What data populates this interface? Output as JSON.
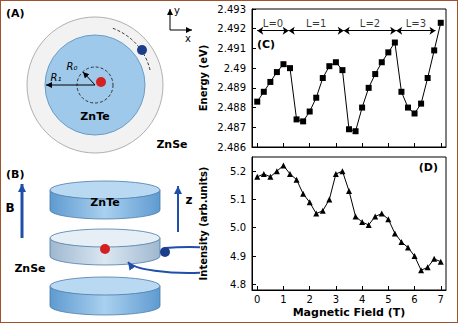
{
  "panels": {
    "a": {
      "panel_label": "(A)",
      "inner_material": "ZnTe",
      "outer_material": "ZnSe",
      "inner_radius_label": "R₀",
      "outer_radius_label": "R₁",
      "axis_x": "x",
      "axis_y": "y"
    },
    "b": {
      "panel_label": "(B)",
      "field_label": "B",
      "axis_label": "z",
      "top_material": "ZnTe",
      "barrier_material": "ZnSe"
    }
  },
  "chart_data": [
    {
      "type": "line",
      "panel_label": "(C)",
      "marker": "square",
      "color": "#000000",
      "grid": false,
      "tick_labels": "y",
      "ylabel": "Energy (eV)",
      "x": [
        0,
        0.25,
        0.5,
        0.75,
        1.0,
        1.25,
        1.5,
        1.75,
        2.0,
        2.25,
        2.5,
        2.75,
        3.0,
        3.25,
        3.5,
        3.75,
        4.0,
        4.25,
        4.5,
        4.75,
        5.0,
        5.25,
        5.5,
        5.75,
        6.0,
        6.25,
        6.5,
        6.75,
        7.0
      ],
      "values": [
        2.4883,
        2.4888,
        2.4893,
        2.4898,
        2.4902,
        2.49,
        2.4874,
        2.4873,
        2.4878,
        2.4885,
        2.4895,
        2.4901,
        2.4903,
        2.4899,
        2.4869,
        2.4868,
        2.488,
        2.489,
        2.4897,
        2.4903,
        2.4908,
        2.4913,
        2.4888,
        2.488,
        2.4877,
        2.4882,
        2.4895,
        2.4909,
        2.4923
      ],
      "xlim": [
        -0.2,
        7.2
      ],
      "xticks": [
        0,
        1,
        2,
        3,
        4,
        5,
        6,
        7
      ],
      "ylim": [
        2.486,
        2.493
      ],
      "yticks": [
        2.486,
        2.487,
        2.488,
        2.489,
        2.49,
        2.491,
        2.492,
        2.493
      ],
      "annotations": [
        {
          "text": "L=0",
          "x": [
            0,
            1.2
          ],
          "y": 2.4919
        },
        {
          "text": "L=1",
          "x": [
            1.2,
            3.3
          ],
          "y": 2.4919
        },
        {
          "text": "L=2",
          "x": [
            3.3,
            5.3
          ],
          "y": 2.4919
        },
        {
          "text": "L=3",
          "x": [
            5.3,
            6.8
          ],
          "y": 2.4919
        }
      ]
    },
    {
      "type": "line",
      "panel_label": "(D)",
      "marker": "triangle",
      "color": "#000000",
      "grid": false,
      "xlabel": "Magnetic Field (T)",
      "ylabel": "Intensity (arb.units)",
      "x": [
        0,
        0.25,
        0.5,
        0.75,
        1.0,
        1.25,
        1.5,
        1.75,
        2.0,
        2.25,
        2.5,
        2.75,
        3.0,
        3.25,
        3.5,
        3.75,
        4.0,
        4.25,
        4.5,
        4.75,
        5.0,
        5.25,
        5.5,
        5.75,
        6.0,
        6.25,
        6.5,
        6.75,
        7.0
      ],
      "values": [
        5.18,
        5.19,
        5.18,
        5.2,
        5.22,
        5.19,
        5.17,
        5.12,
        5.09,
        5.05,
        5.06,
        5.1,
        5.19,
        5.2,
        5.13,
        5.04,
        5.02,
        5.01,
        5.04,
        5.05,
        5.03,
        4.98,
        4.95,
        4.93,
        4.9,
        4.85,
        4.86,
        4.89,
        4.88
      ],
      "xlim": [
        -0.2,
        7.2
      ],
      "xticks": [
        0,
        1,
        2,
        3,
        4,
        5,
        6,
        7
      ],
      "ylim": [
        4.78,
        5.25
      ],
      "yticks": [
        4.8,
        4.9,
        {
          "value": 5,
          "label": "5.0"
        },
        5.1,
        5.2
      ]
    }
  ]
}
